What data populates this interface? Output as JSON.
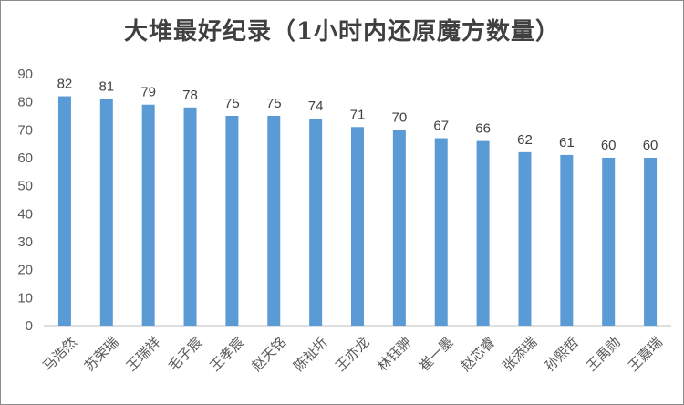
{
  "chart_data": {
    "type": "bar",
    "title": "大堆最好纪录（1小时内还原魔方数量）",
    "categories": [
      "马浩然",
      "苏荣瑞",
      "王瑞祥",
      "毛子宸",
      "王孝宸",
      "赵天铭",
      "陈祉圻",
      "王亦龙",
      "林钰翀",
      "崔一墨",
      "赵芯睿",
      "张添瑞",
      "孙熙哲",
      "王禹勋",
      "王嘉瑞"
    ],
    "values": [
      82,
      81,
      79,
      78,
      75,
      75,
      74,
      71,
      70,
      67,
      66,
      62,
      61,
      60,
      60
    ],
    "ylim": [
      0,
      90
    ],
    "yticks": [
      0,
      10,
      20,
      30,
      40,
      50,
      60,
      70,
      80,
      90
    ],
    "grid": false,
    "bar_color": "#5b9bd5",
    "xlabel": "",
    "ylabel": ""
  }
}
